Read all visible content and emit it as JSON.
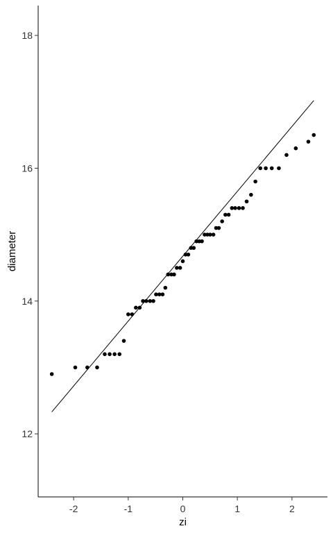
{
  "chart_data": {
    "type": "scatter",
    "title": "",
    "xlabel": "zi",
    "ylabel": "diameter",
    "xlim": [
      -2.65,
      2.65
    ],
    "ylim": [
      11.05,
      18.45
    ],
    "xticks": [
      -2,
      -1,
      0,
      1,
      2
    ],
    "xtick_labels": [
      "-2",
      "-1",
      "0",
      "1",
      "2"
    ],
    "yticks": [
      12,
      14,
      16,
      18
    ],
    "ytick_labels": [
      "12",
      "14",
      "16",
      "18"
    ],
    "grid": false,
    "legend": "none",
    "point_color": "#000000",
    "line_color": "#000000",
    "reference_line": {
      "x": [
        -2.4,
        2.4
      ],
      "y": [
        12.33,
        17.02
      ]
    },
    "points": [
      {
        "x": -2.4,
        "y": 12.9
      },
      {
        "x": -1.97,
        "y": 13.0
      },
      {
        "x": -1.75,
        "y": 13.0
      },
      {
        "x": -1.57,
        "y": 13.0
      },
      {
        "x": -1.43,
        "y": 13.2
      },
      {
        "x": -1.34,
        "y": 13.2
      },
      {
        "x": -1.25,
        "y": 13.2
      },
      {
        "x": -1.16,
        "y": 13.2
      },
      {
        "x": -1.08,
        "y": 13.4
      },
      {
        "x": -1.0,
        "y": 13.8
      },
      {
        "x": -0.93,
        "y": 13.8
      },
      {
        "x": -0.86,
        "y": 13.9
      },
      {
        "x": -0.79,
        "y": 13.9
      },
      {
        "x": -0.73,
        "y": 14.0
      },
      {
        "x": -0.67,
        "y": 14.0
      },
      {
        "x": -0.6,
        "y": 14.0
      },
      {
        "x": -0.54,
        "y": 14.0
      },
      {
        "x": -0.49,
        "y": 14.1
      },
      {
        "x": -0.43,
        "y": 14.1
      },
      {
        "x": -0.37,
        "y": 14.1
      },
      {
        "x": -0.32,
        "y": 14.2
      },
      {
        "x": -0.27,
        "y": 14.4
      },
      {
        "x": -0.21,
        "y": 14.4
      },
      {
        "x": -0.16,
        "y": 14.4
      },
      {
        "x": -0.11,
        "y": 14.5
      },
      {
        "x": -0.05,
        "y": 14.5
      },
      {
        "x": -0.0,
        "y": 14.6
      },
      {
        "x": 0.05,
        "y": 14.7
      },
      {
        "x": 0.1,
        "y": 14.7
      },
      {
        "x": 0.15,
        "y": 14.8
      },
      {
        "x": 0.2,
        "y": 14.8
      },
      {
        "x": 0.25,
        "y": 14.9
      },
      {
        "x": 0.3,
        "y": 14.9
      },
      {
        "x": 0.35,
        "y": 14.9
      },
      {
        "x": 0.4,
        "y": 15.0
      },
      {
        "x": 0.45,
        "y": 15.0
      },
      {
        "x": 0.5,
        "y": 15.0
      },
      {
        "x": 0.56,
        "y": 15.0
      },
      {
        "x": 0.61,
        "y": 15.1
      },
      {
        "x": 0.66,
        "y": 15.1
      },
      {
        "x": 0.72,
        "y": 15.2
      },
      {
        "x": 0.78,
        "y": 15.3
      },
      {
        "x": 0.84,
        "y": 15.3
      },
      {
        "x": 0.9,
        "y": 15.4
      },
      {
        "x": 0.96,
        "y": 15.4
      },
      {
        "x": 1.03,
        "y": 15.4
      },
      {
        "x": 1.1,
        "y": 15.4
      },
      {
        "x": 1.17,
        "y": 15.5
      },
      {
        "x": 1.25,
        "y": 15.6
      },
      {
        "x": 1.33,
        "y": 15.8
      },
      {
        "x": 1.42,
        "y": 16.0
      },
      {
        "x": 1.52,
        "y": 16.0
      },
      {
        "x": 1.63,
        "y": 16.0
      },
      {
        "x": 1.76,
        "y": 16.0
      },
      {
        "x": 1.9,
        "y": 16.2
      },
      {
        "x": 2.07,
        "y": 16.3
      },
      {
        "x": 2.3,
        "y": 16.4
      },
      {
        "x": 2.4,
        "y": 16.5
      }
    ]
  }
}
